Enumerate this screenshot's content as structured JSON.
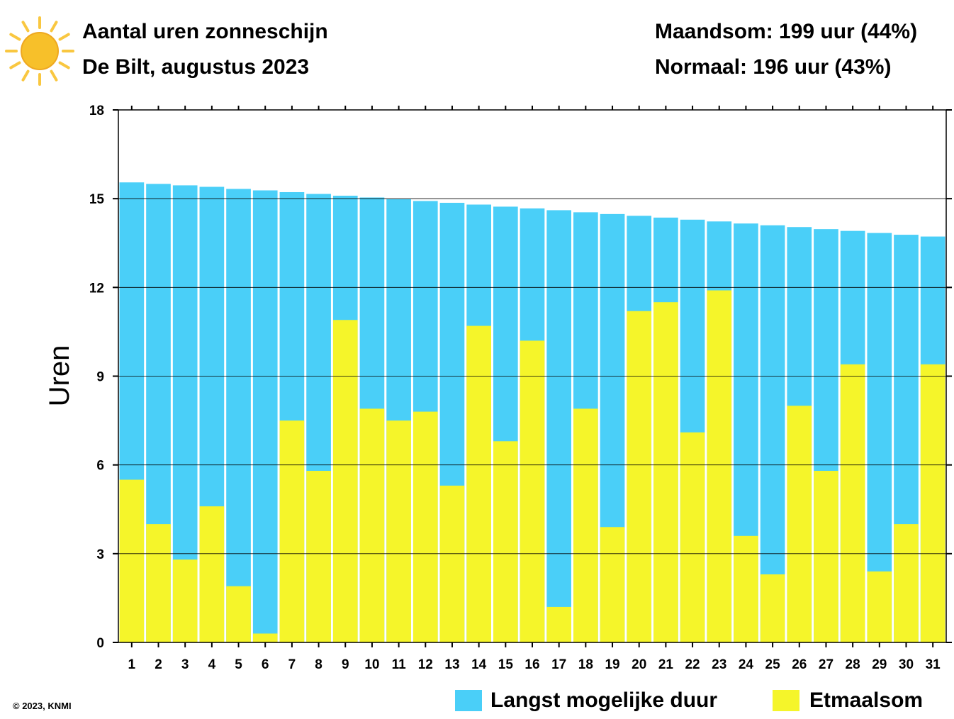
{
  "header": {
    "title": "Aantal uren zonneschijn",
    "subtitle": "De Bilt, augustus 2023",
    "summary_total": "Maandsom: 199 uur (44%)",
    "summary_normal": "Normaal: 196 uur (43%)",
    "icon": "sun-icon"
  },
  "credit": "© 2023, KNMI",
  "colors": {
    "possible": "#4acff8",
    "actual": "#f5f52a",
    "sun_fill": "#f7c02a",
    "sun_ray": "#f9c740"
  },
  "chart_data": {
    "type": "bar",
    "ylabel": "Uren",
    "ylim": [
      0,
      18
    ],
    "yticks": [
      0,
      3,
      6,
      9,
      12,
      15,
      18
    ],
    "grid": true,
    "categories": [
      "1",
      "2",
      "3",
      "4",
      "5",
      "6",
      "7",
      "8",
      "9",
      "10",
      "11",
      "12",
      "13",
      "14",
      "15",
      "16",
      "17",
      "18",
      "19",
      "20",
      "21",
      "22",
      "23",
      "24",
      "25",
      "26",
      "27",
      "28",
      "29",
      "30",
      "31"
    ],
    "series": [
      {
        "name": "Langst mogelijke duur",
        "color": "#4acff8",
        "values": [
          15.55,
          15.5,
          15.45,
          15.4,
          15.33,
          15.28,
          15.22,
          15.16,
          15.1,
          15.04,
          14.98,
          14.92,
          14.86,
          14.8,
          14.73,
          14.67,
          14.61,
          14.54,
          14.48,
          14.42,
          14.36,
          14.29,
          14.23,
          14.16,
          14.1,
          14.04,
          13.97,
          13.91,
          13.84,
          13.78,
          13.72
        ]
      },
      {
        "name": "Etmaalsom",
        "color": "#f5f52a",
        "values": [
          5.5,
          4.0,
          2.8,
          4.6,
          1.9,
          0.3,
          7.5,
          5.8,
          10.9,
          7.9,
          7.5,
          7.8,
          5.3,
          10.7,
          6.8,
          10.2,
          1.2,
          7.9,
          3.9,
          11.2,
          11.5,
          7.1,
          11.9,
          3.6,
          2.3,
          8.0,
          5.8,
          9.4,
          2.4,
          4.0,
          9.4
        ]
      }
    ],
    "legend": "bottom-right"
  }
}
